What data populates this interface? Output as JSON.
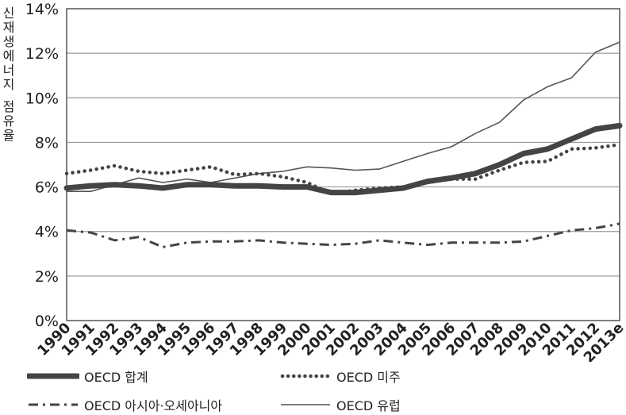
{
  "chart_data": {
    "type": "line",
    "ylabel": "신재생에너지 점유율",
    "yticks": [
      "0%",
      "2%",
      "4%",
      "6%",
      "8%",
      "10%",
      "12%",
      "14%"
    ],
    "ylim": [
      0,
      14
    ],
    "categories": [
      "1990",
      "1991",
      "1992",
      "1993",
      "1994",
      "1995",
      "1996",
      "1997",
      "1998",
      "1999",
      "2000",
      "2001",
      "2002",
      "2003",
      "2004",
      "2005",
      "2006",
      "2007",
      "2008",
      "2009",
      "2010",
      "2011",
      "2012",
      "2013e"
    ],
    "grid": true,
    "legend_position": "bottom",
    "series": [
      {
        "name": "OECD 합계",
        "style": "thick",
        "color": "#444444",
        "values": [
          5.95,
          6.05,
          6.1,
          6.05,
          5.95,
          6.1,
          6.1,
          6.05,
          6.05,
          6.0,
          6.0,
          5.75,
          5.75,
          5.85,
          5.95,
          6.25,
          6.4,
          6.6,
          7.0,
          7.5,
          7.7,
          8.15,
          8.6,
          8.75
        ]
      },
      {
        "name": "OECD 미주",
        "style": "dotted",
        "color": "#444444",
        "values": [
          6.6,
          6.75,
          6.95,
          6.7,
          6.6,
          6.75,
          6.9,
          6.55,
          6.6,
          6.45,
          6.2,
          5.7,
          5.85,
          5.95,
          6.0,
          6.2,
          6.35,
          6.35,
          6.75,
          7.1,
          7.15,
          7.7,
          7.75,
          7.9
        ]
      },
      {
        "name": "OECD 아시아·오세아니아",
        "style": "dashdot",
        "color": "#444444",
        "values": [
          4.05,
          3.95,
          3.6,
          3.75,
          3.3,
          3.5,
          3.55,
          3.55,
          3.6,
          3.5,
          3.45,
          3.4,
          3.45,
          3.6,
          3.5,
          3.4,
          3.5,
          3.5,
          3.5,
          3.55,
          3.8,
          4.05,
          4.15,
          4.35
        ]
      },
      {
        "name": "OECD 유럽",
        "style": "thin",
        "color": "#555555",
        "values": [
          5.8,
          5.8,
          6.1,
          6.4,
          6.2,
          6.35,
          6.2,
          6.4,
          6.6,
          6.7,
          6.9,
          6.85,
          6.75,
          6.8,
          7.15,
          7.5,
          7.8,
          8.4,
          8.9,
          9.9,
          10.5,
          10.9,
          12.05,
          12.5
        ]
      }
    ]
  }
}
